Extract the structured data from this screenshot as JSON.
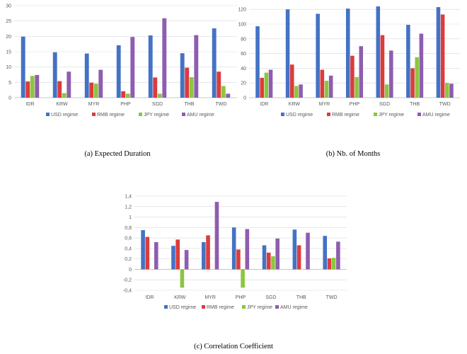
{
  "colors": {
    "usd": "#4472C4",
    "rmb": "#DC3C3C",
    "jpy": "#8CC63F",
    "amu": "#8E5DAF",
    "grid": "#D9D9D9",
    "axis": "#BFBFBF"
  },
  "chart_data": [
    {
      "type": "bar",
      "caption": "(a)  Expected Duration",
      "categories": [
        "IDR",
        "KRW",
        "MYR",
        "PHP",
        "SGD",
        "THB",
        "TWD"
      ],
      "yticks": [
        "0",
        "5",
        "10",
        "15",
        "20",
        "25",
        "30"
      ],
      "ylim": [
        0,
        30
      ],
      "grid": true,
      "legend_position": "bottom",
      "series": [
        {
          "name": "USD regime",
          "values": [
            19.9,
            14.8,
            14.4,
            17.1,
            20.3,
            14.5,
            22.6
          ]
        },
        {
          "name": "RMB regime",
          "values": [
            5.3,
            5.4,
            4.9,
            2.1,
            6.6,
            9.8,
            8.5
          ]
        },
        {
          "name": "JPY regime",
          "values": [
            7.1,
            1.5,
            4.6,
            1.3,
            1.3,
            6.7,
            3.8
          ]
        },
        {
          "name": "AMU regime",
          "values": [
            7.4,
            8.5,
            9.1,
            19.8,
            25.9,
            20.4,
            1.3
          ]
        }
      ]
    },
    {
      "type": "bar",
      "caption": "(b)  Nb. of Months",
      "categories": [
        "IDR",
        "KRW",
        "MYR",
        "PHP",
        "SGD",
        "THB",
        "TWD"
      ],
      "yticks": [
        "0",
        "20",
        "40",
        "60",
        "80",
        "100",
        "120"
      ],
      "ylim": [
        0,
        125
      ],
      "grid": true,
      "legend_position": "bottom",
      "series": [
        {
          "name": "USD regime",
          "values": [
            97,
            120,
            114,
            121,
            124,
            99,
            123
          ]
        },
        {
          "name": "RMB regime",
          "values": [
            27,
            45,
            38,
            57,
            85,
            40,
            113
          ]
        },
        {
          "name": "JPY regime",
          "values": [
            34,
            16,
            23,
            28,
            18,
            55,
            20
          ]
        },
        {
          "name": "AMU regime",
          "values": [
            38,
            18,
            30,
            70,
            64,
            87,
            19
          ]
        }
      ]
    },
    {
      "type": "bar",
      "caption": "(c)  Correlation Coefficient",
      "categories": [
        "IDR",
        "KRW",
        "MYR",
        "PHP",
        "SGD",
        "THB",
        "TWD"
      ],
      "yticks": [
        "-0,4",
        "-0,2",
        "0",
        "0,2",
        "0,4",
        "0,6",
        "0,8",
        "1",
        "1,2",
        "1,4"
      ],
      "ylim": [
        -0.4,
        1.4
      ],
      "grid": true,
      "legend_position": "bottom",
      "series": [
        {
          "name": "USD regime",
          "values": [
            0.75,
            0.45,
            0.52,
            0.8,
            0.46,
            0.76,
            0.64
          ]
        },
        {
          "name": "RMB regime",
          "values": [
            0.62,
            0.57,
            0.65,
            0.38,
            0.32,
            0.46,
            0.21
          ]
        },
        {
          "name": "JPY regime",
          "values": [
            null,
            -0.35,
            null,
            -0.35,
            0.25,
            null,
            0.22
          ]
        },
        {
          "name": "AMU regime",
          "values": [
            0.52,
            0.37,
            1.29,
            0.77,
            0.59,
            0.7,
            0.53
          ]
        }
      ]
    }
  ]
}
